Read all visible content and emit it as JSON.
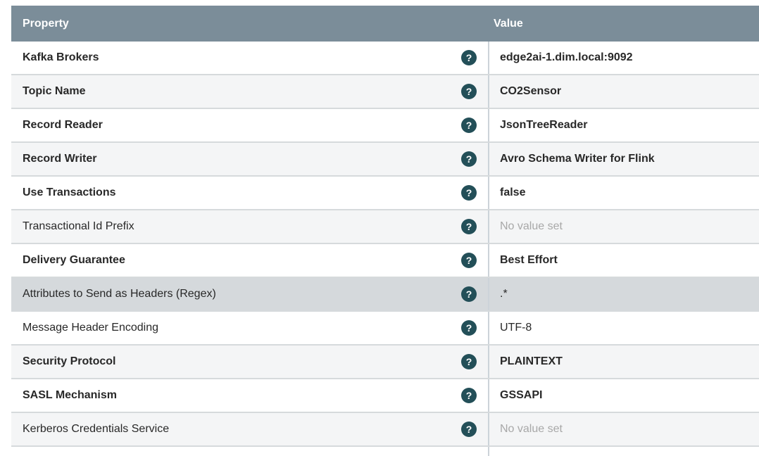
{
  "header": {
    "property_label": "Property",
    "value_label": "Value"
  },
  "help_icon_glyph": "?",
  "colors": {
    "header_bg": "#7b8d99",
    "header_text": "#ffffff",
    "help_icon_bg": "#234f58",
    "row_stripe_bg": "#f4f5f6",
    "row_selected_bg": "#d5d9dc",
    "text": "#282828",
    "no_value_text": "#a8a8a8",
    "column_divider": "#ccd3d9",
    "row_border": "#d6dadc"
  },
  "rows": [
    {
      "property": "Kafka Brokers",
      "value": "edge2ai-1.dim.local:9092",
      "bold": true,
      "no_value": false,
      "selected": false
    },
    {
      "property": "Topic Name",
      "value": "CO2Sensor",
      "bold": true,
      "no_value": false,
      "selected": false
    },
    {
      "property": "Record Reader",
      "value": "JsonTreeReader",
      "bold": true,
      "no_value": false,
      "selected": false
    },
    {
      "property": "Record Writer",
      "value": "Avro Schema Writer for Flink",
      "bold": true,
      "no_value": false,
      "selected": false
    },
    {
      "property": "Use Transactions",
      "value": "false",
      "bold": true,
      "no_value": false,
      "selected": false
    },
    {
      "property": "Transactional Id Prefix",
      "value": "No value set",
      "bold": false,
      "no_value": true,
      "selected": false
    },
    {
      "property": "Delivery Guarantee",
      "value": "Best Effort",
      "bold": true,
      "no_value": false,
      "selected": false
    },
    {
      "property": "Attributes to Send as Headers (Regex)",
      "value": ".*",
      "bold": false,
      "no_value": false,
      "selected": true
    },
    {
      "property": "Message Header Encoding",
      "value": "UTF-8",
      "bold": false,
      "no_value": false,
      "selected": false
    },
    {
      "property": "Security Protocol",
      "value": "PLAINTEXT",
      "bold": true,
      "no_value": false,
      "selected": false
    },
    {
      "property": "SASL Mechanism",
      "value": "GSSAPI",
      "bold": true,
      "no_value": false,
      "selected": false
    },
    {
      "property": "Kerberos Credentials Service",
      "value": "No value set",
      "bold": false,
      "no_value": true,
      "selected": false
    }
  ]
}
